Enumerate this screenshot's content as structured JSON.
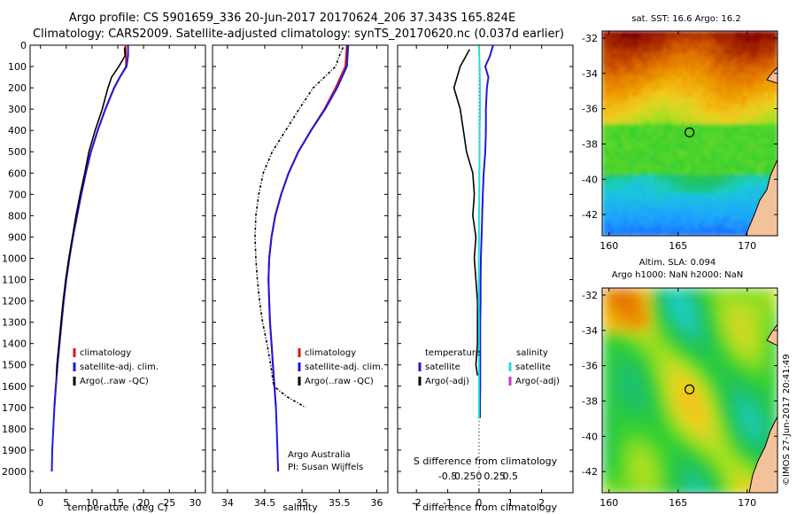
{
  "title": {
    "line1": "Argo profile: CS 5901659_336 20-Jun-2017 20170624_206 37.343S 165.824E",
    "line2": "Climatology: CARS2009. Satellite-adjusted climatology: synTS_20170620.nc (0.037d earlier)"
  },
  "credit": "©IMOS 27-Jun-2017 20:41:49",
  "colors": {
    "climatology": "#dd1111",
    "satellite": "#1a1adc",
    "argo": "#000000",
    "sal_satellite": "#22dddd",
    "sal_argo": "#cc33cc",
    "land": "#f4c29a"
  },
  "chart_data": [
    {
      "type": "line",
      "id": "temperature",
      "xlabel": "temperature (deg C)",
      "ylabel": "",
      "xlim": [
        -2,
        32
      ],
      "ylim": [
        2100,
        0
      ],
      "xticks": [
        0,
        5,
        10,
        15,
        20,
        25,
        30
      ],
      "yticks": [
        0,
        100,
        200,
        300,
        400,
        500,
        600,
        700,
        800,
        900,
        1000,
        1100,
        1200,
        1300,
        1400,
        1500,
        1600,
        1700,
        1800,
        1900,
        2000
      ],
      "legend": [
        "climatology",
        "satellite-adj. clim.",
        "Argo(..raw -QC)"
      ],
      "series": [
        {
          "name": "climatology",
          "color": "#dd1111",
          "depth": [
            0,
            50,
            100,
            150,
            200,
            300,
            400,
            500,
            600,
            700,
            800,
            900,
            1000,
            1100,
            1200,
            1300,
            1400,
            1500,
            1600,
            1700
          ],
          "values": [
            16.5,
            16.6,
            16.6,
            15.4,
            14.3,
            12.6,
            11.1,
            9.8,
            8.8,
            7.9,
            7.1,
            6.3,
            5.6,
            5.0,
            4.5,
            4.1,
            3.7,
            3.3,
            3.0,
            2.7
          ]
        },
        {
          "name": "satellite-adj. clim.",
          "color": "#1a1adc",
          "depth": [
            0,
            50,
            100,
            150,
            200,
            300,
            400,
            500,
            600,
            700,
            800,
            900,
            1000,
            1100,
            1200,
            1300,
            1400,
            1500,
            1600,
            1700,
            1800,
            1900,
            2000
          ],
          "values": [
            17.0,
            17.0,
            16.7,
            15.4,
            14.3,
            12.6,
            11.1,
            9.8,
            8.8,
            7.9,
            7.1,
            6.3,
            5.6,
            5.0,
            4.5,
            4.1,
            3.7,
            3.3,
            3.0,
            2.7,
            2.5,
            2.3,
            2.2
          ]
        },
        {
          "name": "Argo(..raw -QC)",
          "color": "#000000",
          "depth": [
            10,
            50,
            100,
            150,
            200,
            300,
            400,
            500,
            600,
            700,
            800,
            900,
            1000,
            1100,
            1200,
            1300,
            1400,
            1500,
            1550
          ],
          "values": [
            16.3,
            16.4,
            15.2,
            13.8,
            13.1,
            12.0,
            10.6,
            9.4,
            8.6,
            7.7,
            6.9,
            6.2,
            5.5,
            4.9,
            4.4,
            4.0,
            3.6,
            3.2,
            3.1
          ]
        }
      ]
    },
    {
      "type": "line",
      "id": "salinity",
      "xlabel": "salinity",
      "ylabel": "",
      "xlim": [
        33.8,
        36.15
      ],
      "ylim": [
        2100,
        0
      ],
      "xticks": [
        34,
        34.5,
        35,
        35.5,
        36
      ],
      "legend": [
        "climatology",
        "satellite-adj. clim.",
        "Argo(..raw -QC)"
      ],
      "annotation": [
        "Argo Australia",
        "PI: Susan Wijffels"
      ],
      "series": [
        {
          "name": "climatology",
          "color": "#dd1111",
          "depth": [
            0,
            100,
            200,
            300,
            400,
            500,
            600,
            700,
            800,
            900,
            1000,
            1100,
            1200,
            1300,
            1400,
            1500,
            1600,
            1700
          ],
          "values": [
            35.6,
            35.58,
            35.45,
            35.3,
            35.12,
            34.95,
            34.82,
            34.72,
            34.64,
            34.59,
            34.56,
            34.55,
            34.56,
            34.57,
            34.59,
            34.61,
            34.63,
            34.65
          ]
        },
        {
          "name": "satellite-adj. clim.",
          "color": "#1a1adc",
          "depth": [
            0,
            100,
            200,
            300,
            400,
            500,
            600,
            700,
            800,
            900,
            1000,
            1100,
            1200,
            1300,
            1400,
            1500,
            1600,
            1700,
            1800,
            1900,
            2000
          ],
          "values": [
            35.62,
            35.6,
            35.47,
            35.31,
            35.12,
            34.95,
            34.82,
            34.72,
            34.64,
            34.59,
            34.56,
            34.55,
            34.56,
            34.57,
            34.59,
            34.61,
            34.63,
            34.65,
            34.66,
            34.67,
            34.68
          ]
        },
        {
          "name": "Argo(..raw -QC)",
          "color": "#000000",
          "depth": [
            10,
            50,
            100,
            150,
            200,
            300,
            400,
            500,
            600,
            700,
            800,
            900,
            1000,
            1100,
            1200,
            1300,
            1400,
            1500,
            1600,
            1650,
            1700
          ],
          "values": [
            35.55,
            35.5,
            35.45,
            35.3,
            35.15,
            34.96,
            34.78,
            34.6,
            34.48,
            34.42,
            34.38,
            34.37,
            34.38,
            34.4,
            34.43,
            34.47,
            34.53,
            34.58,
            34.62,
            34.8,
            35.05
          ]
        }
      ]
    },
    {
      "type": "line",
      "id": "difference",
      "xlabel": "T difference from climatology",
      "xlabel_top": "S difference from climatology",
      "xlim": [
        -2.6,
        3.0
      ],
      "ylim": [
        2100,
        0
      ],
      "xticks": [
        -2,
        -1,
        0,
        1,
        2
      ],
      "xticks_top": [
        "-0.5",
        "-0.25",
        "0",
        "0.25",
        "0.5"
      ],
      "legend_titles": [
        "temperature",
        "salinity"
      ],
      "legend": [
        "satellite",
        "Argo(-adj)",
        "satellite",
        "Argo(-adj)"
      ],
      "series": [
        {
          "name": "temperature satellite",
          "color": "#1a1adc",
          "depth": [
            0,
            50,
            100,
            150,
            200,
            300,
            400,
            500,
            600,
            700,
            800,
            900,
            1000,
            1100,
            1200,
            1300,
            1400,
            1500,
            1600,
            1700,
            1750
          ],
          "values": [
            0.45,
            0.35,
            0.2,
            0.3,
            0.25,
            0.22,
            0.22,
            0.2,
            0.15,
            0.12,
            0.1,
            0.08,
            0.06,
            0.05,
            0.05,
            0.04,
            0.04,
            0.04,
            0.04,
            0.03,
            0.03
          ]
        },
        {
          "name": "temperature Argo(-adj)",
          "color": "#000000",
          "depth": [
            20,
            100,
            200,
            300,
            400,
            500,
            600,
            700,
            800,
            900,
            1000,
            1100,
            1200,
            1300,
            1400,
            1500,
            1550
          ],
          "values": [
            -0.3,
            -0.6,
            -0.8,
            -0.6,
            -0.5,
            -0.4,
            -0.2,
            -0.15,
            -0.2,
            -0.1,
            -0.15,
            -0.1,
            -0.05,
            -0.05,
            -0.05,
            -0.1,
            -0.05
          ]
        },
        {
          "name": "salinity satellite",
          "color": "#22dddd",
          "depth": [
            0,
            100,
            200,
            300,
            400,
            500,
            600,
            700,
            800,
            900,
            1000,
            1100,
            1200,
            1300,
            1400,
            1500,
            1600,
            1700,
            1750
          ],
          "values": [
            0.0,
            0.02,
            0.03,
            0.03,
            0.02,
            0.02,
            0.01,
            0.01,
            0.0,
            0.0,
            -0.01,
            -0.01,
            -0.01,
            0.0,
            0.0,
            0.0,
            0.0,
            0.0,
            0.0
          ]
        }
      ]
    },
    {
      "type": "heatmap",
      "id": "sst-map",
      "title": "sat. SST: 16.6 Argo: 16.2",
      "xlim": [
        159.5,
        172.2
      ],
      "ylim": [
        -43.2,
        -31.6
      ],
      "xticks": [
        160,
        165,
        170
      ],
      "yticks": [
        -32,
        -34,
        -36,
        -38,
        -40,
        -42
      ],
      "marker": {
        "lon": 165.824,
        "lat": -37.343
      }
    },
    {
      "type": "heatmap",
      "id": "sla-map",
      "title": [
        "Altim. SLA: 0.094",
        "Argo h1000: NaN h2000: NaN"
      ],
      "xlim": [
        159.5,
        172.2
      ],
      "ylim": [
        -43.2,
        -31.6
      ],
      "xticks": [
        160,
        165,
        170
      ],
      "yticks": [
        -32,
        -34,
        -36,
        -38,
        -40,
        -42
      ],
      "marker": {
        "lon": 165.824,
        "lat": -37.343
      }
    }
  ]
}
